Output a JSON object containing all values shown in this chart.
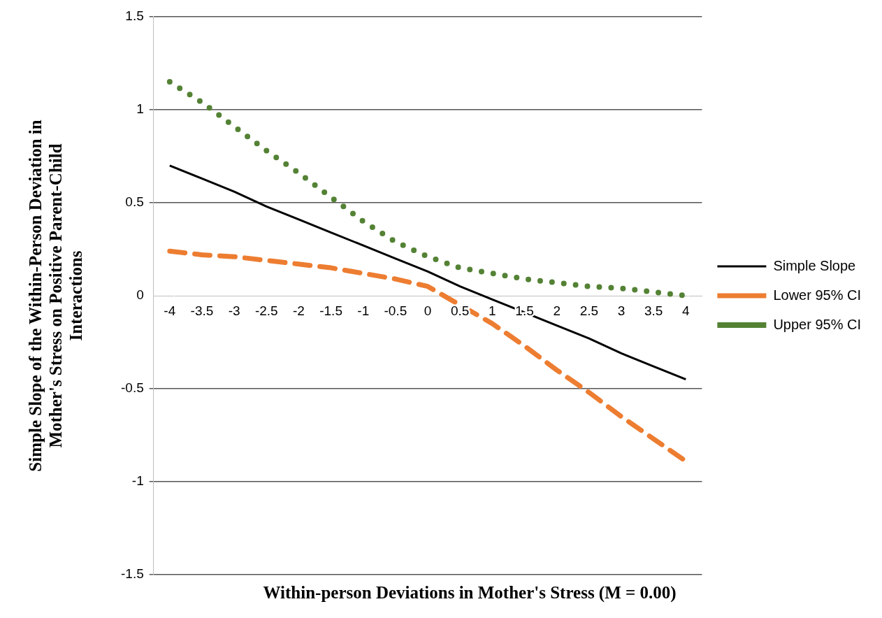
{
  "chart_data": {
    "type": "line",
    "xlabel": "Within-person Deviations in Mother's Stress (M = 0.00)",
    "ylabel": "Simple Slope of the Within-Person Deviation in Mother's Stress on Positive Parent-Child Interactions",
    "categories": [
      "-4",
      "-3.5",
      "-3",
      "-2.5",
      "-2",
      "-1.5",
      "-1",
      "-0.5",
      "0",
      "0.5",
      "1",
      "1.5",
      "2",
      "2.5",
      "3",
      "3.5",
      "4"
    ],
    "series": [
      {
        "name": "Simple Slope",
        "color": "#000000",
        "line_style": "solid",
        "values": [
          0.7,
          0.63,
          0.56,
          0.48,
          0.41,
          0.34,
          0.27,
          0.2,
          0.13,
          0.05,
          -0.02,
          -0.09,
          -0.16,
          -0.23,
          -0.31,
          -0.38,
          -0.45
        ]
      },
      {
        "name": "Lower 95% CI",
        "color": "#ed7d31",
        "line_style": "dashed",
        "values": [
          0.24,
          0.22,
          0.21,
          0.19,
          0.17,
          0.15,
          0.12,
          0.09,
          0.05,
          -0.05,
          -0.15,
          -0.27,
          -0.4,
          -0.52,
          -0.65,
          -0.77,
          -0.89
        ]
      },
      {
        "name": "Upper 95% CI",
        "color": "#548235",
        "line_style": "dotted",
        "values": [
          1.15,
          1.04,
          0.91,
          0.78,
          0.66,
          0.53,
          0.4,
          0.29,
          0.21,
          0.15,
          0.12,
          0.09,
          0.07,
          0.05,
          0.04,
          0.02,
          0.0
        ]
      }
    ],
    "ylim": [
      -1.5,
      1.5
    ],
    "yticks": [
      -1.5,
      -1,
      -0.5,
      0,
      0.5,
      1,
      1.5
    ],
    "grid": "y",
    "legend": "right"
  }
}
